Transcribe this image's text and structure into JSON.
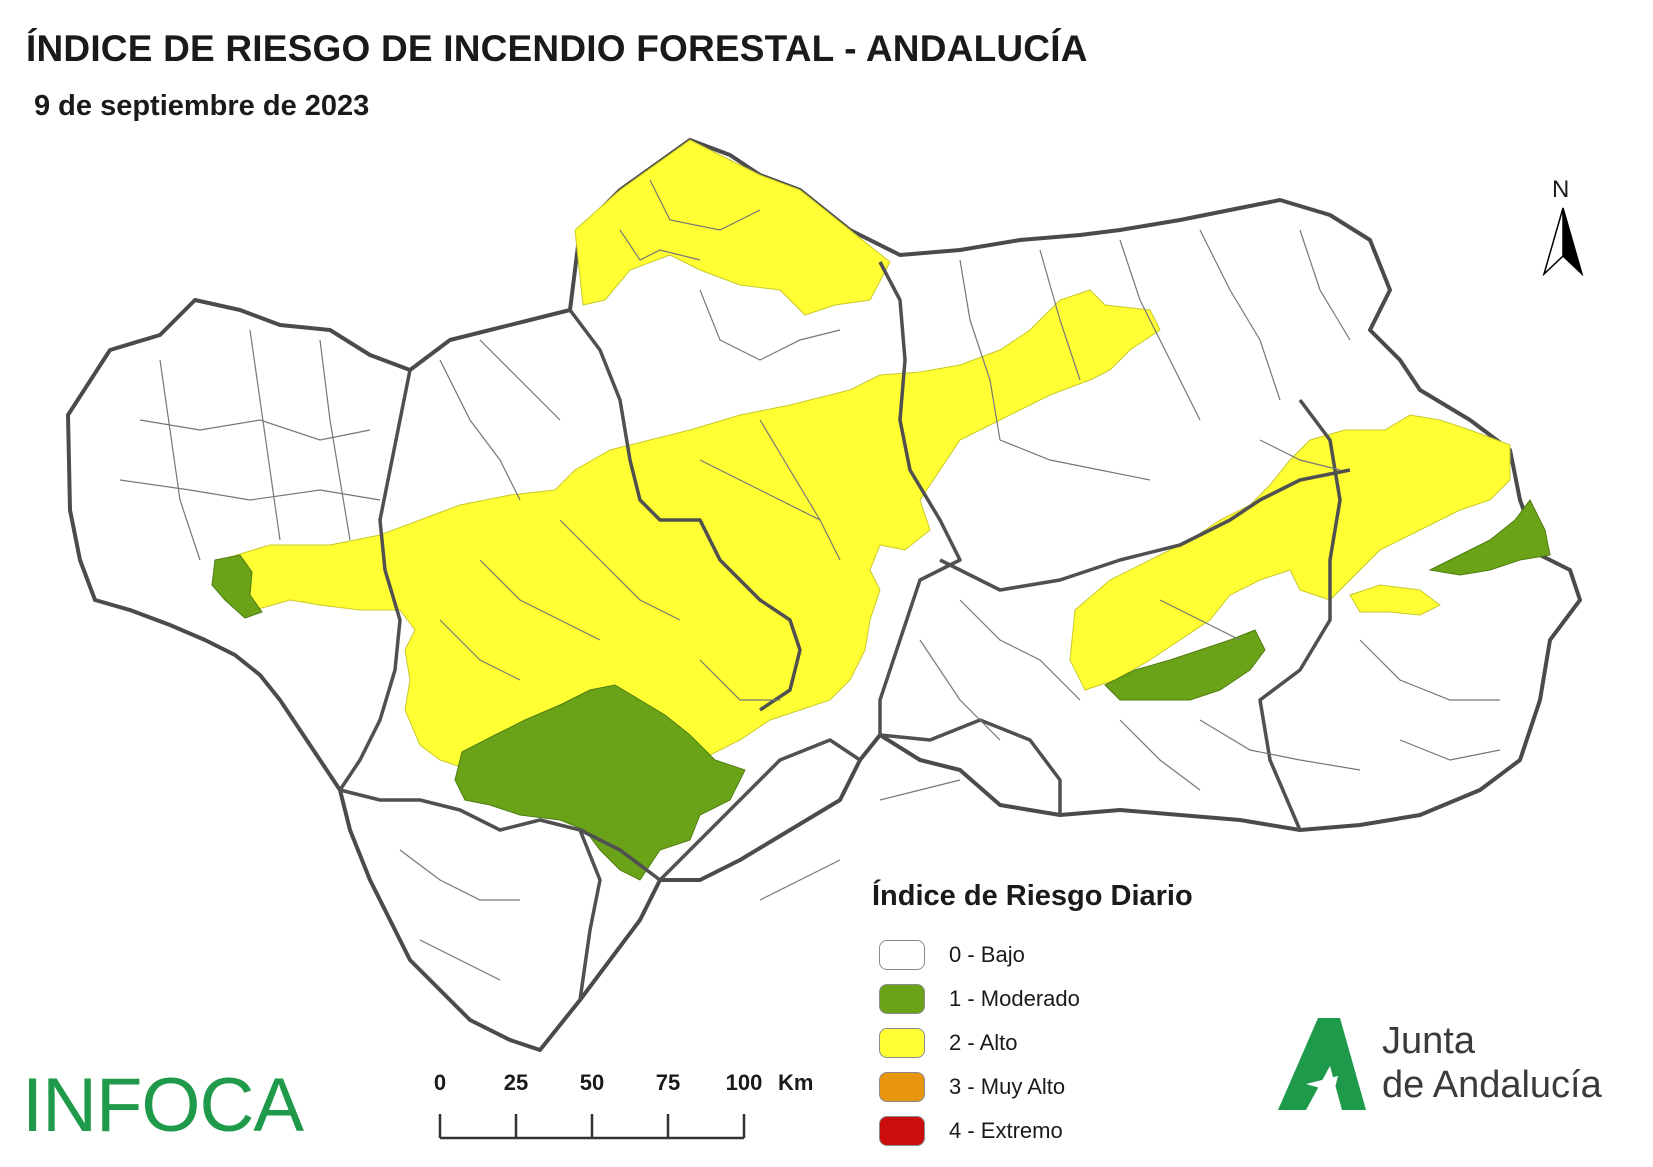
{
  "header": {
    "title": "ÍNDICE DE RIESGO DE INCENDIO FORESTAL - ANDALUCÍA",
    "date": "9 de septiembre de 2023"
  },
  "north_arrow": {
    "label": "N",
    "icon": "north-arrow-icon"
  },
  "legend": {
    "title": "Índice de Riesgo Diario",
    "items": [
      {
        "label": "0 - Bajo",
        "color": "#ffffff"
      },
      {
        "label": "1 - Moderado",
        "color": "#6aa318"
      },
      {
        "label": "2 - Alto",
        "color": "#ffff33"
      },
      {
        "label": "3 - Muy Alto",
        "color": "#e8960e"
      },
      {
        "label": "4 - Extremo",
        "color": "#cc0d0d"
      }
    ]
  },
  "scale_bar": {
    "ticks": [
      "0",
      "25",
      "50",
      "75",
      "100"
    ],
    "unit": "Km"
  },
  "logos": {
    "infoca": "INFOCA",
    "junta_line1": "Junta",
    "junta_line2": "de Andalucía"
  },
  "colors": {
    "bajo": "#ffffff",
    "moderado": "#6aa318",
    "alto": "#ffff33",
    "border_province": "#505050",
    "border_municipal": "#6e6e6e"
  }
}
